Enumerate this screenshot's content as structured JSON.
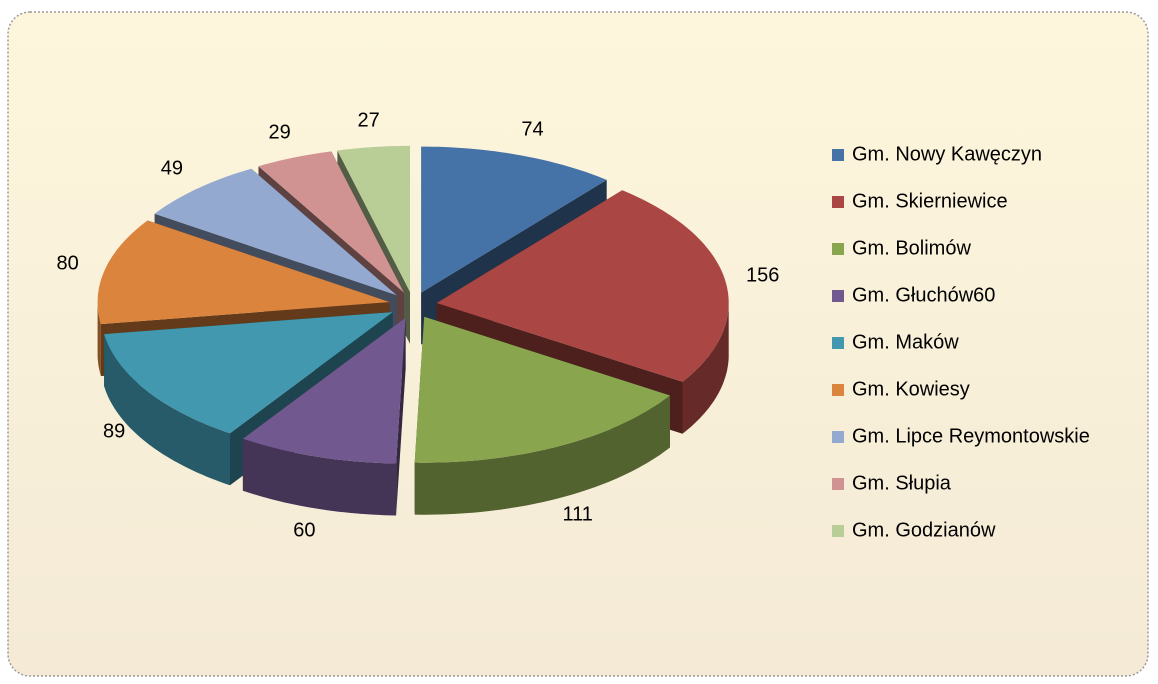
{
  "chart_data": {
    "type": "pie",
    "three_d": true,
    "exploded": true,
    "categories": [
      "Gm. Nowy Kawęczyn",
      "Gm. Skierniewice",
      "Gm. Bolimów",
      "Gm. Głuchów60",
      "Gm. Maków",
      "Gm. Kowiesy",
      "Gm. Lipce Reymontowskie",
      "Gm. Słupia",
      "Gm. Godzianów"
    ],
    "values": [
      74,
      156,
      111,
      60,
      89,
      80,
      49,
      29,
      27
    ],
    "colors": [
      "#4572a7",
      "#aa4643",
      "#89a54e",
      "#71588f",
      "#4198af",
      "#db843d",
      "#93a9cf",
      "#d19392",
      "#b9cd96"
    ],
    "legend": "right"
  }
}
